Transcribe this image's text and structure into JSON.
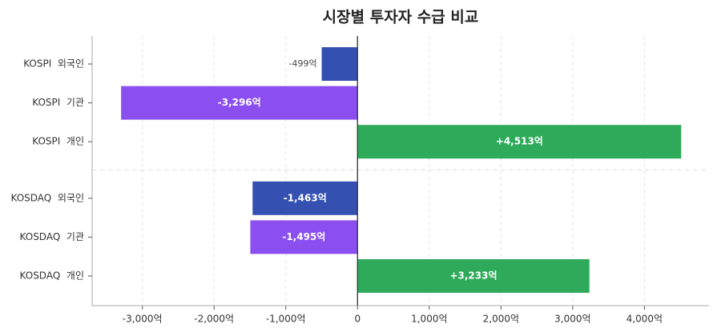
{
  "chart_data": {
    "type": "bar",
    "orientation": "horizontal",
    "title": "시장별 투자자 수급 비교",
    "categories": [
      "KOSPI  외국인",
      "KOSPI  기관",
      "KOSPI  개인",
      "KOSDAQ  외국인",
      "KOSDAQ  기관",
      "KOSDAQ  개인"
    ],
    "values": [
      -499,
      -3296,
      4513,
      -1463,
      -1495,
      3233
    ],
    "value_labels": [
      "-499억",
      "-3,296억",
      "+4,513억",
      "-1,463억",
      "-1,495억",
      "+3,233억"
    ],
    "colors": [
      "#3451b2",
      "#8b4ff0",
      "#2eaa5a",
      "#3451b2",
      "#8b4ff0",
      "#2eaa5a"
    ],
    "xlim": [
      -3700,
      4900
    ],
    "xticks": [
      {
        "value": -3000,
        "label": "-3,000억"
      },
      {
        "value": -2000,
        "label": "-2,000억"
      },
      {
        "value": -1000,
        "label": "-1,000억"
      },
      0,
      {
        "value": 1000,
        "label": "1,000억"
      },
      {
        "value": 2000,
        "label": "2,000억"
      },
      {
        "value": 3000,
        "label": "3,000억"
      },
      {
        "value": 4000,
        "label": "4,000억"
      }
    ],
    "grid": true
  }
}
